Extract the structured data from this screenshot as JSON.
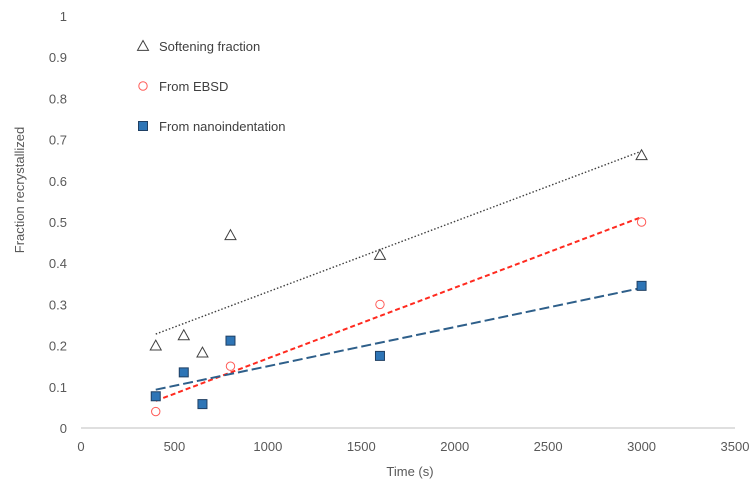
{
  "chart_data": {
    "type": "scatter",
    "xlabel": "Time (s)",
    "ylabel": "Fraction recrystallized",
    "xlim": [
      0,
      3500
    ],
    "ylim": [
      0,
      1
    ],
    "xticks": [
      0,
      500,
      1000,
      1500,
      2000,
      2500,
      3000,
      3500
    ],
    "yticks": [
      0,
      0.1,
      0.2,
      0.3,
      0.4,
      0.5,
      0.6,
      0.7,
      0.8,
      0.9,
      1
    ],
    "grid": false,
    "legend_position": "top-left",
    "series": [
      {
        "name": "Softening fraction",
        "marker": "open-triangle",
        "color": "#404040",
        "points": [
          [
            400,
            0.2
          ],
          [
            550,
            0.225
          ],
          [
            650,
            0.183
          ],
          [
            800,
            0.468
          ],
          [
            1600,
            0.42
          ],
          [
            3000,
            0.662
          ]
        ],
        "trendline": {
          "x": [
            400,
            3000
          ],
          "y": [
            0.228,
            0.672
          ],
          "style": "dotted",
          "color": "#404040"
        }
      },
      {
        "name": "From EBSD",
        "marker": "open-circle",
        "color": "#ff5b57",
        "points": [
          [
            400,
            0.04
          ],
          [
            800,
            0.15
          ],
          [
            1600,
            0.3
          ],
          [
            3000,
            0.5
          ]
        ],
        "trendline": {
          "x": [
            400,
            3000
          ],
          "y": [
            0.066,
            0.512
          ],
          "style": "dashed",
          "color": "#ff2a1f"
        }
      },
      {
        "name": "From nanoindentation",
        "marker": "filled-square",
        "color": "#2e75b6",
        "points": [
          [
            400,
            0.077
          ],
          [
            550,
            0.135
          ],
          [
            650,
            0.058
          ],
          [
            800,
            0.212
          ],
          [
            1600,
            0.175
          ],
          [
            3000,
            0.345
          ]
        ],
        "trendline": {
          "x": [
            400,
            3000
          ],
          "y": [
            0.093,
            0.34
          ],
          "style": "long-dashed",
          "color": "#2e5f8a"
        }
      }
    ]
  }
}
